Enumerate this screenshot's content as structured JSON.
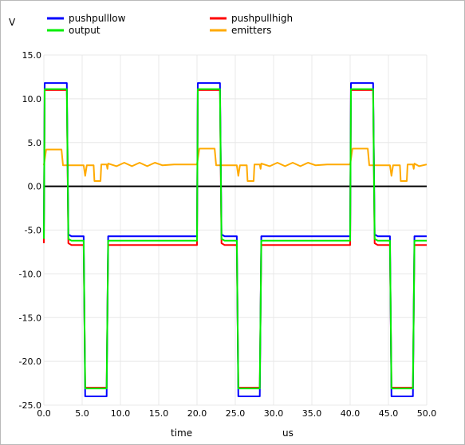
{
  "chart_data": {
    "type": "line",
    "ylabel": "V",
    "xlabel": "time",
    "xunit": "us",
    "xlim": [
      0,
      50
    ],
    "ylim": [
      -25,
      15
    ],
    "xticks": [
      0,
      5,
      10,
      15,
      20,
      25,
      30,
      35,
      40,
      45,
      50
    ],
    "yticks": [
      15,
      10,
      5,
      0,
      -5,
      -10,
      -15,
      -20,
      -25
    ],
    "xtick_labels": [
      "0.0",
      "5.0",
      "10.0",
      "15.0",
      "20.0",
      "25.0",
      "30.0",
      "35.0",
      "40.0",
      "45.0",
      "50.0"
    ],
    "ytick_labels": [
      "15.0",
      "10.0",
      "5.0",
      "0.0",
      "-5.0",
      "-10.0",
      "-15.0",
      "-20.0",
      "-25.0"
    ],
    "grid": true,
    "legend_placement": "top",
    "period_us": 20,
    "series": [
      {
        "name": "pushpulllow",
        "color": "#0000ff",
        "points": [
          [
            0,
            -5.8
          ],
          [
            0.1,
            11.8
          ],
          [
            3.0,
            11.8
          ],
          [
            3.2,
            -5.5
          ],
          [
            3.6,
            -5.7
          ],
          [
            5.2,
            -5.7
          ],
          [
            5.4,
            -24.0
          ],
          [
            8.2,
            -24.0
          ],
          [
            8.4,
            -5.7
          ],
          [
            20.0,
            -5.7
          ],
          [
            20.1,
            11.8
          ],
          [
            23.0,
            11.8
          ],
          [
            23.2,
            -5.5
          ],
          [
            23.6,
            -5.7
          ],
          [
            25.2,
            -5.7
          ],
          [
            25.4,
            -24.0
          ],
          [
            28.2,
            -24.0
          ],
          [
            28.4,
            -5.7
          ],
          [
            40.0,
            -5.7
          ],
          [
            40.1,
            11.8
          ],
          [
            43.0,
            11.8
          ],
          [
            43.2,
            -5.5
          ],
          [
            43.6,
            -5.7
          ],
          [
            45.2,
            -5.7
          ],
          [
            45.4,
            -24.0
          ],
          [
            48.2,
            -24.0
          ],
          [
            48.4,
            -5.7
          ],
          [
            50.0,
            -5.7
          ]
        ]
      },
      {
        "name": "pushpullhigh",
        "color": "#ff0000",
        "points": [
          [
            0,
            -6.5
          ],
          [
            0.1,
            11.0
          ],
          [
            3.0,
            11.0
          ],
          [
            3.2,
            -6.5
          ],
          [
            3.6,
            -6.7
          ],
          [
            5.2,
            -6.7
          ],
          [
            5.4,
            -23.0
          ],
          [
            8.2,
            -23.0
          ],
          [
            8.4,
            -6.7
          ],
          [
            20.0,
            -6.7
          ],
          [
            20.1,
            11.0
          ],
          [
            23.0,
            11.0
          ],
          [
            23.2,
            -6.5
          ],
          [
            23.6,
            -6.7
          ],
          [
            25.2,
            -6.7
          ],
          [
            25.4,
            -23.0
          ],
          [
            28.2,
            -23.0
          ],
          [
            28.4,
            -6.7
          ],
          [
            40.0,
            -6.7
          ],
          [
            40.1,
            11.0
          ],
          [
            43.0,
            11.0
          ],
          [
            43.2,
            -6.5
          ],
          [
            43.6,
            -6.7
          ],
          [
            45.2,
            -6.7
          ],
          [
            45.4,
            -23.0
          ],
          [
            48.2,
            -23.0
          ],
          [
            48.4,
            -6.7
          ],
          [
            50.0,
            -6.7
          ]
        ]
      },
      {
        "name": "output",
        "color": "#00ee00",
        "points": [
          [
            0,
            -6.0
          ],
          [
            0.1,
            11.1
          ],
          [
            3.0,
            11.1
          ],
          [
            3.2,
            -6.0
          ],
          [
            3.6,
            -6.2
          ],
          [
            5.2,
            -6.2
          ],
          [
            5.4,
            -23.1
          ],
          [
            8.2,
            -23.1
          ],
          [
            8.4,
            -6.2
          ],
          [
            20.0,
            -6.2
          ],
          [
            20.1,
            11.1
          ],
          [
            23.0,
            11.1
          ],
          [
            23.2,
            -6.0
          ],
          [
            23.6,
            -6.2
          ],
          [
            25.2,
            -6.2
          ],
          [
            25.4,
            -23.1
          ],
          [
            28.2,
            -23.1
          ],
          [
            28.4,
            -6.2
          ],
          [
            40.0,
            -6.2
          ],
          [
            40.1,
            11.1
          ],
          [
            43.0,
            11.1
          ],
          [
            43.2,
            -6.0
          ],
          [
            43.6,
            -6.2
          ],
          [
            45.2,
            -6.2
          ],
          [
            45.4,
            -23.1
          ],
          [
            48.2,
            -23.1
          ],
          [
            48.4,
            -6.2
          ],
          [
            50.0,
            -6.2
          ]
        ]
      },
      {
        "name": "emitters",
        "color": "#ffaa00",
        "points": [
          [
            0,
            2.4
          ],
          [
            0.3,
            4.2
          ],
          [
            2.3,
            4.2
          ],
          [
            2.5,
            2.4
          ],
          [
            5.2,
            2.4
          ],
          [
            5.4,
            1.2
          ],
          [
            5.6,
            2.4
          ],
          [
            6.5,
            2.4
          ],
          [
            6.6,
            0.6
          ],
          [
            7.4,
            0.6
          ],
          [
            7.5,
            2.5
          ],
          [
            8.2,
            2.5
          ],
          [
            8.3,
            2.0
          ],
          [
            8.4,
            2.6
          ],
          [
            9.5,
            2.3
          ],
          [
            10.5,
            2.7
          ],
          [
            11.5,
            2.3
          ],
          [
            12.5,
            2.7
          ],
          [
            13.5,
            2.3
          ],
          [
            14.5,
            2.7
          ],
          [
            15.5,
            2.4
          ],
          [
            17.0,
            2.5
          ],
          [
            20.0,
            2.5
          ],
          [
            20.3,
            4.3
          ],
          [
            22.3,
            4.3
          ],
          [
            22.5,
            2.4
          ],
          [
            25.2,
            2.4
          ],
          [
            25.4,
            1.2
          ],
          [
            25.6,
            2.4
          ],
          [
            26.5,
            2.4
          ],
          [
            26.6,
            0.6
          ],
          [
            27.4,
            0.6
          ],
          [
            27.5,
            2.5
          ],
          [
            28.2,
            2.5
          ],
          [
            28.3,
            2.0
          ],
          [
            28.4,
            2.6
          ],
          [
            29.5,
            2.3
          ],
          [
            30.5,
            2.7
          ],
          [
            31.5,
            2.3
          ],
          [
            32.5,
            2.7
          ],
          [
            33.5,
            2.3
          ],
          [
            34.5,
            2.7
          ],
          [
            35.5,
            2.4
          ],
          [
            37.0,
            2.5
          ],
          [
            40.0,
            2.5
          ],
          [
            40.3,
            4.3
          ],
          [
            42.3,
            4.3
          ],
          [
            42.5,
            2.4
          ],
          [
            45.2,
            2.4
          ],
          [
            45.4,
            1.2
          ],
          [
            45.6,
            2.4
          ],
          [
            46.5,
            2.4
          ],
          [
            46.6,
            0.6
          ],
          [
            47.4,
            0.6
          ],
          [
            47.5,
            2.5
          ],
          [
            48.2,
            2.5
          ],
          [
            48.3,
            2.0
          ],
          [
            48.4,
            2.6
          ],
          [
            49.0,
            2.3
          ],
          [
            50.0,
            2.5
          ]
        ]
      }
    ]
  }
}
